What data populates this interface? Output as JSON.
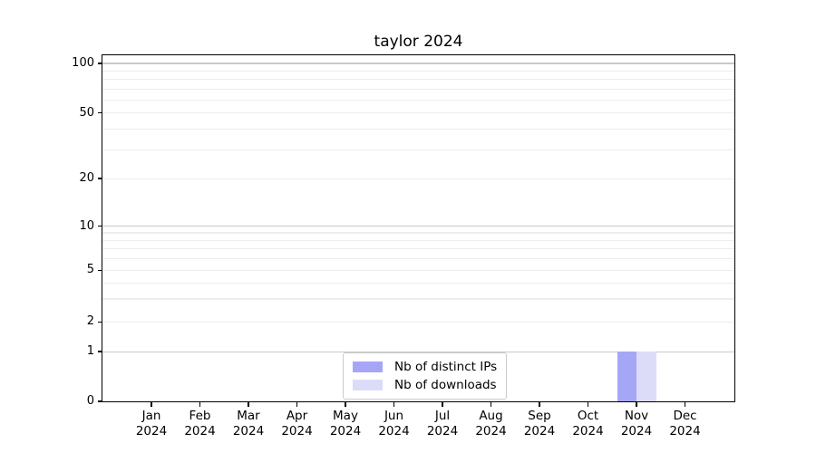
{
  "chart_data": {
    "type": "bar",
    "title": "taylor 2024",
    "categories": [
      "Jan 2024",
      "Feb 2024",
      "Mar 2024",
      "Apr 2024",
      "May 2024",
      "Jun 2024",
      "Jul 2024",
      "Aug 2024",
      "Sep 2024",
      "Oct 2024",
      "Nov 2024",
      "Dec 2024"
    ],
    "series": [
      {
        "name": "Nb of distinct IPs",
        "color": "#a6a6f7",
        "values": [
          0,
          0,
          0,
          0,
          0,
          0,
          0,
          0,
          0,
          0,
          1,
          0
        ]
      },
      {
        "name": "Nb of downloads",
        "color": "#dcdcf9",
        "values": [
          0,
          0,
          0,
          0,
          0,
          0,
          0,
          0,
          0,
          0,
          1,
          0
        ]
      }
    ],
    "yticks": [
      0,
      1,
      2,
      5,
      10,
      20,
      50,
      100
    ],
    "y_minor_gridlines": [
      3,
      4,
      6,
      7,
      8,
      9,
      30,
      40,
      60,
      70,
      80,
      90
    ],
    "y_scale_anchors": {
      "0": 0,
      "1": 0.1436,
      "2": 0.2298,
      "5": 0.3786,
      "10": 0.5065,
      "20": 0.6436,
      "50": 0.8329,
      "100": 0.9765
    },
    "xlabel": "",
    "ylabel": "",
    "grid": "both",
    "legend_position": "lower center",
    "colors": {
      "major_grid": "#c9c9c9",
      "minor_grid": "#ededed",
      "spine": "#000000",
      "background": "#ffffff"
    }
  }
}
